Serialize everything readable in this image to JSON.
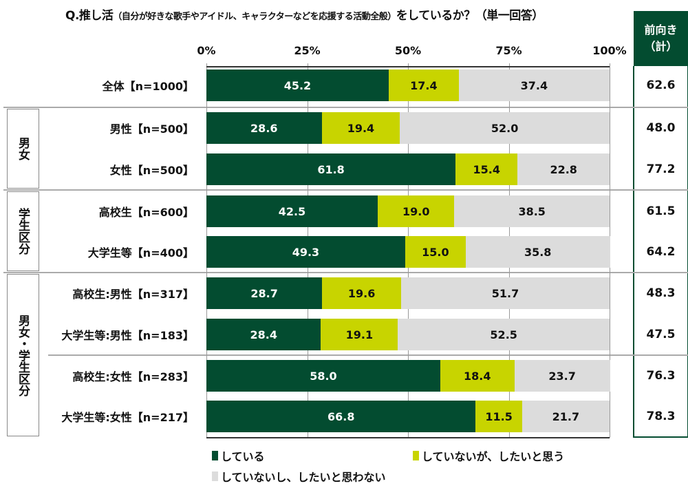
{
  "chart_data": {
    "type": "bar",
    "stacked": true,
    "orientation": "horizontal",
    "title": "Q.推し活",
    "title_sub": "（自分が好きな歌手やアイドル、キャラクターなどを応援する活動全般）",
    "title_end": "をしているか？（単一回答）",
    "xlim": [
      0,
      100
    ],
    "xticks": [
      "0%",
      "25%",
      "50%",
      "75%",
      "100%"
    ],
    "categories": [
      "全体【n=1000】",
      "男性【n=500】",
      "女性【n=500】",
      "高校生【n=600】",
      "大学生等【n=400】",
      "高校生:男性【n=317】",
      "大学生等:男性【n=183】",
      "高校生:女性【n=283】",
      "大学生等:女性【n=217】"
    ],
    "series": [
      {
        "name": "している",
        "color": "#034c30",
        "values": [
          45.2,
          28.6,
          61.8,
          42.5,
          49.3,
          28.7,
          28.4,
          58.0,
          66.8
        ]
      },
      {
        "name": "していないが、したいと思う",
        "color": "#c8d400",
        "values": [
          17.4,
          19.4,
          15.4,
          19.0,
          15.0,
          19.6,
          19.1,
          18.4,
          11.5
        ]
      },
      {
        "name": "していないし、したいと思わない",
        "color": "#dcdcdc",
        "values": [
          37.4,
          52.0,
          22.8,
          38.5,
          35.8,
          51.7,
          52.5,
          23.7,
          21.7
        ]
      }
    ],
    "groups": [
      {
        "label": "男女",
        "rows": [
          1,
          2
        ]
      },
      {
        "label": "学生区分",
        "rows": [
          3,
          4
        ]
      },
      {
        "label": "男女・学生区分",
        "rows": [
          5,
          6,
          7,
          8
        ]
      }
    ],
    "summary": {
      "header1": "前向き",
      "header2": "（計）",
      "values": [
        "62.6",
        "48.0",
        "77.2",
        "61.5",
        "64.2",
        "48.3",
        "47.5",
        "76.3",
        "78.3"
      ]
    },
    "legend": "bottom"
  }
}
